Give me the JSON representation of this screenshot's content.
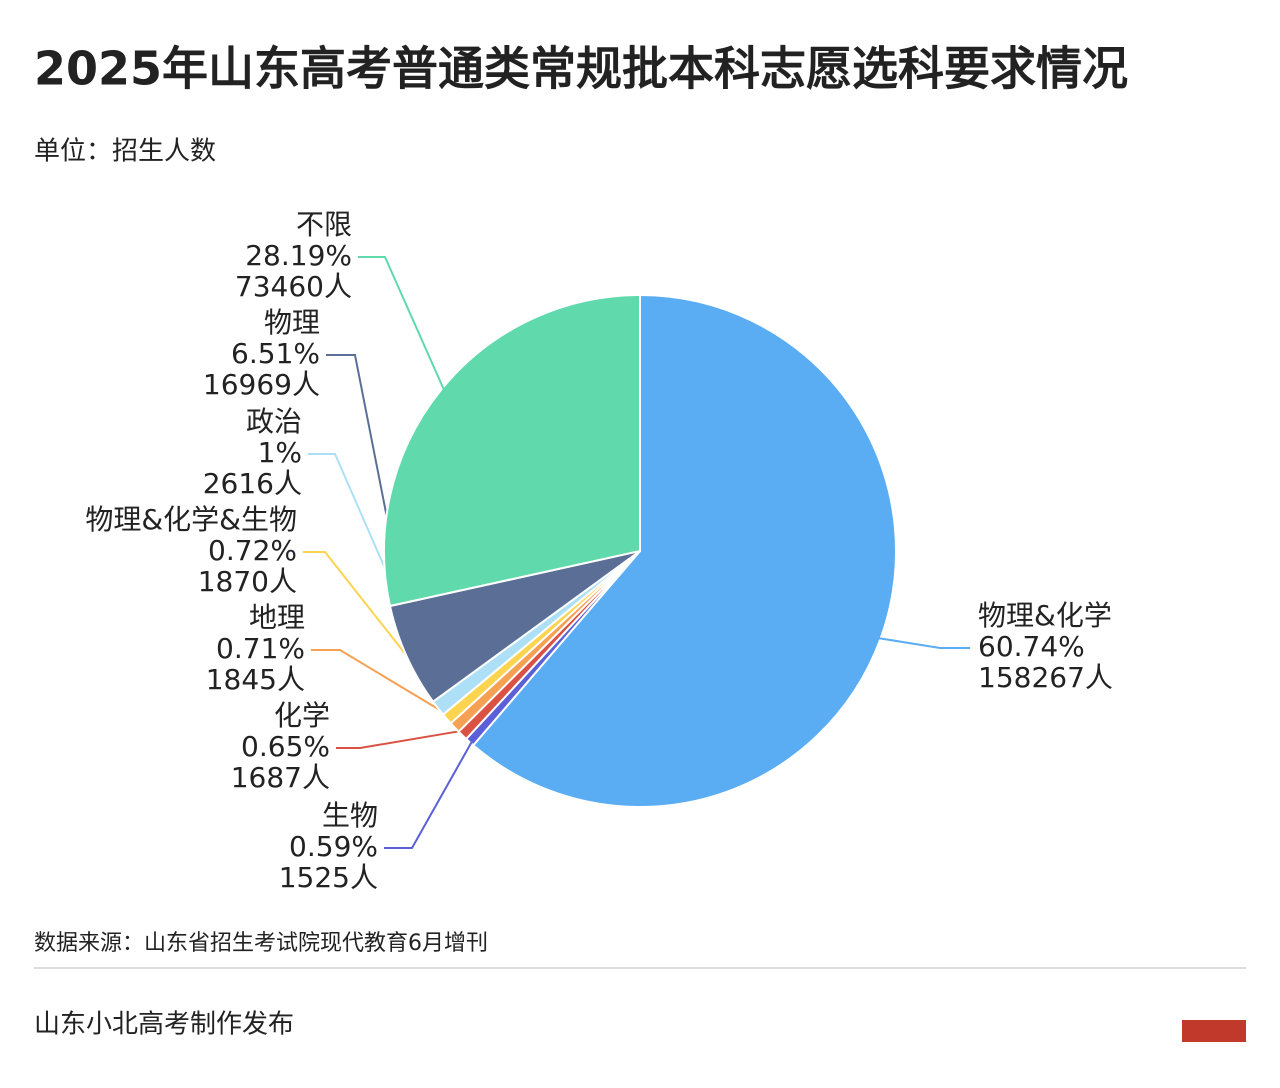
{
  "chart_data": {
    "type": "pie",
    "title": "2025年山东高考普通类常规批本科志愿选科要求情况",
    "subtitle": "单位：招生人数",
    "categories": [
      "物理&化学",
      "生物",
      "化学",
      "地理",
      "物理&化学&生物",
      "政治",
      "物理",
      "不限"
    ],
    "values": [
      158267,
      1525,
      1687,
      1845,
      1870,
      2616,
      16969,
      73460
    ],
    "value_labels": [
      "158267人",
      "1525人",
      "1687人",
      "1845人",
      "1870人",
      "2616人",
      "16969人",
      "73460人"
    ],
    "percent_labels": [
      "60.74%",
      "0.59%",
      "0.65%",
      "0.71%",
      "0.72%",
      "1%",
      "6.51%",
      "28.19%"
    ],
    "colors": [
      "#5aadf2",
      "#5b5fd8",
      "#da5243",
      "#f5a052",
      "#fcd44f",
      "#ade0f6",
      "#5b6f96",
      "#60d9ac"
    ],
    "source": "数据来源：山东省招生考试院现代教育6月增刊",
    "footer": "山东小北高考制作发布"
  }
}
